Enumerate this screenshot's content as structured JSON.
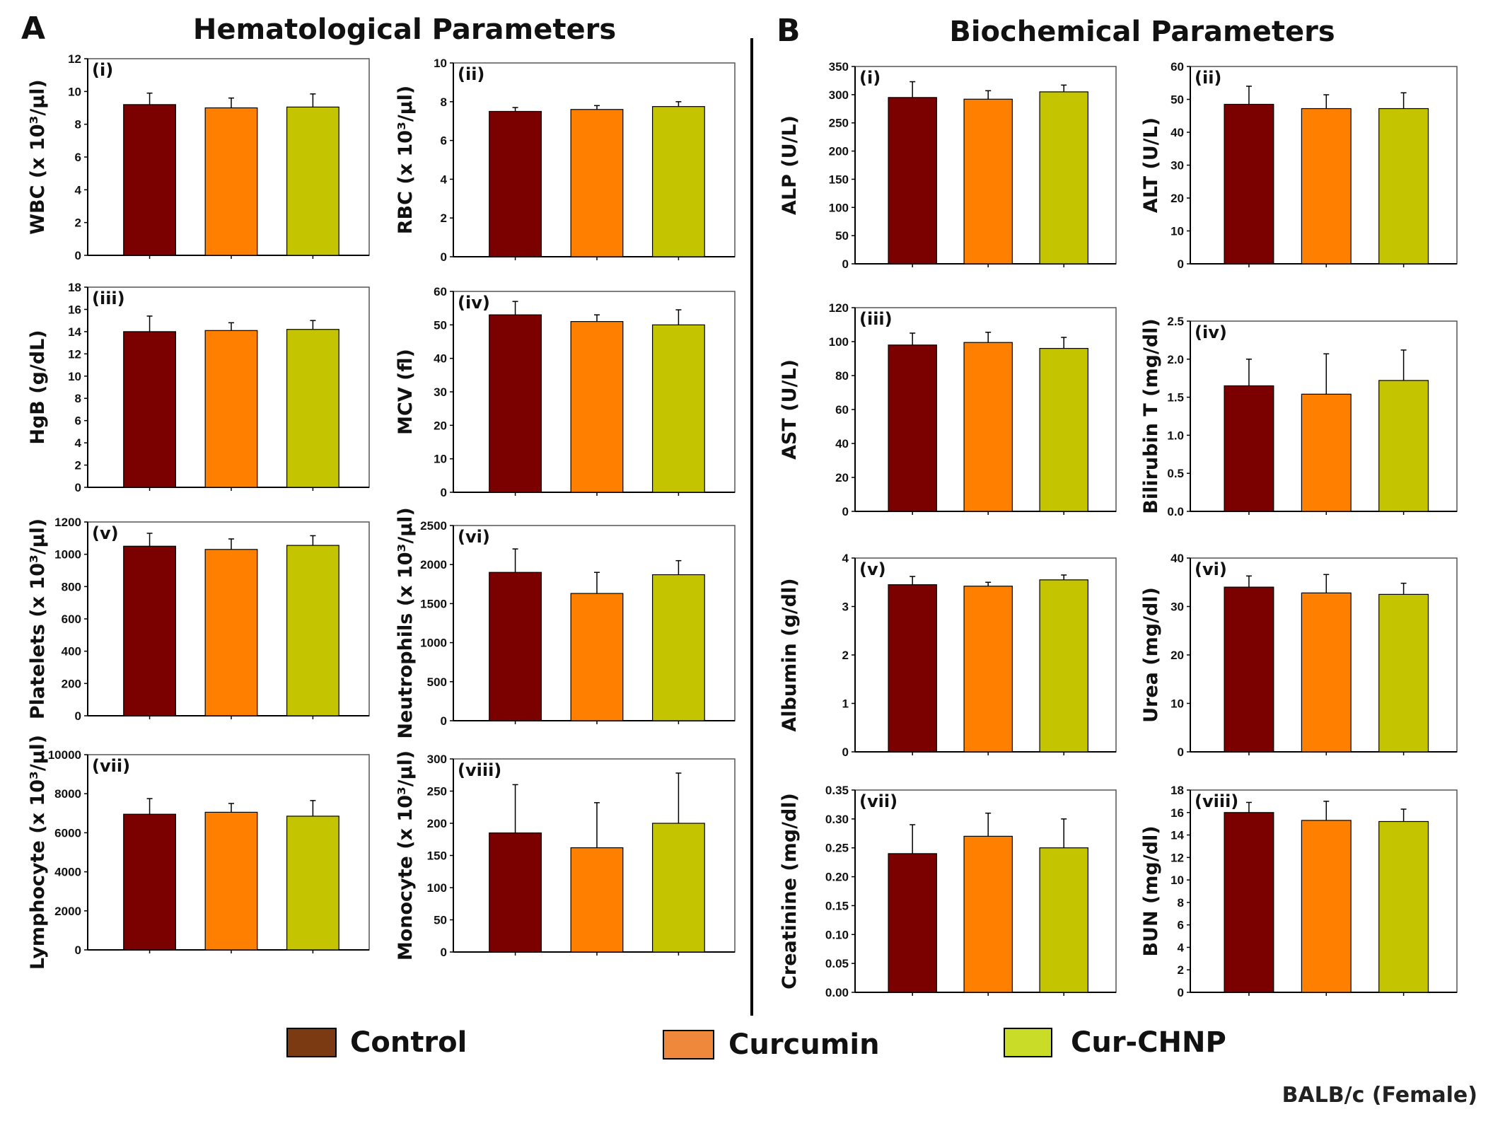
{
  "titles": {
    "A_letter": "A",
    "A_title": "Hematological Parameters",
    "B_letter": "B",
    "B_title": "Biochemical Parameters"
  },
  "legend": [
    {
      "label": "Control",
      "color": "#7b3a12"
    },
    {
      "label": "Curcumin",
      "color": "#f0883c"
    },
    {
      "label": "Cur-CHNP",
      "color": "#c8dc28"
    }
  ],
  "footer": "BALB/c (Female)",
  "bar_colors": [
    "#7b0000",
    "#ff8000",
    "#c4c400"
  ],
  "chart_data": [
    {
      "type": "bar",
      "panel": "(i)",
      "section": "A",
      "ylabel": "WBC (x 10³/µl)",
      "ylim": [
        0,
        12
      ],
      "ticks": [
        "0",
        "2",
        "4",
        "6",
        "8",
        "10",
        "12"
      ],
      "categories": [
        "Control",
        "Curcumin",
        "Cur-CHNP"
      ],
      "values": [
        9.2,
        9.0,
        9.05
      ],
      "errors": [
        0.7,
        0.6,
        0.8
      ]
    },
    {
      "type": "bar",
      "panel": "(ii)",
      "section": "A",
      "ylabel": "RBC (x 10³/µl)",
      "ylim": [
        0,
        10
      ],
      "ticks": [
        "0",
        "2",
        "4",
        "6",
        "8",
        "10"
      ],
      "categories": [
        "Control",
        "Curcumin",
        "Cur-CHNP"
      ],
      "values": [
        7.5,
        7.6,
        7.75
      ],
      "errors": [
        0.2,
        0.2,
        0.25
      ]
    },
    {
      "type": "bar",
      "panel": "(iii)",
      "section": "A",
      "ylabel": "HgB (g/dL)",
      "ylim": [
        0,
        18
      ],
      "ticks": [
        "0",
        "2",
        "4",
        "6",
        "8",
        "10",
        "12",
        "14",
        "16",
        "18"
      ],
      "categories": [
        "Control",
        "Curcumin",
        "Cur-CHNP"
      ],
      "values": [
        14.0,
        14.1,
        14.2
      ],
      "errors": [
        1.4,
        0.7,
        0.8
      ]
    },
    {
      "type": "bar",
      "panel": "(iv)",
      "section": "A",
      "ylabel": "MCV (fl)",
      "ylim": [
        0,
        60
      ],
      "ticks": [
        "0",
        "10",
        "20",
        "30",
        "40",
        "50",
        "60"
      ],
      "categories": [
        "Control",
        "Curcumin",
        "Cur-CHNP"
      ],
      "values": [
        53,
        51,
        50
      ],
      "errors": [
        4,
        2,
        4.5
      ]
    },
    {
      "type": "bar",
      "panel": "(v)",
      "section": "A",
      "ylabel": "Platelets (x 10³/µl)",
      "ylim": [
        0,
        1200
      ],
      "ticks": [
        "0",
        "200",
        "400",
        "600",
        "800",
        "1000",
        "1200"
      ],
      "categories": [
        "Control",
        "Curcumin",
        "Cur-CHNP"
      ],
      "values": [
        1050,
        1030,
        1055
      ],
      "errors": [
        80,
        65,
        60
      ]
    },
    {
      "type": "bar",
      "panel": "(vi)",
      "section": "A",
      "ylabel": "Neutrophils (x 10³/µl)",
      "ylim": [
        0,
        2500
      ],
      "ticks": [
        "0",
        "500",
        "1000",
        "1500",
        "2000",
        "2500"
      ],
      "categories": [
        "Control",
        "Curcumin",
        "Cur-CHNP"
      ],
      "values": [
        1900,
        1630,
        1870
      ],
      "errors": [
        300,
        270,
        180
      ]
    },
    {
      "type": "bar",
      "panel": "(vii)",
      "section": "A",
      "ylabel": "Lymphocyte (x 10³/µl)",
      "ylim": [
        0,
        10000
      ],
      "ticks": [
        "0",
        "2000",
        "4000",
        "6000",
        "8000",
        "10000"
      ],
      "categories": [
        "Control",
        "Curcumin",
        "Cur-CHNP"
      ],
      "values": [
        6950,
        7050,
        6850
      ],
      "errors": [
        800,
        450,
        800
      ]
    },
    {
      "type": "bar",
      "panel": "(viii)",
      "section": "A",
      "ylabel": "Monocyte (x 10³/µl)",
      "ylim": [
        0,
        300
      ],
      "ticks": [
        "0",
        "50",
        "100",
        "150",
        "200",
        "250",
        "300"
      ],
      "categories": [
        "Control",
        "Curcumin",
        "Cur-CHNP"
      ],
      "values": [
        185,
        162,
        200
      ],
      "errors": [
        75,
        70,
        78
      ]
    },
    {
      "type": "bar",
      "panel": "(i)",
      "section": "B",
      "ylabel": "ALP (U/L)",
      "ylim": [
        0,
        350
      ],
      "ticks": [
        "0",
        "50",
        "100",
        "150",
        "200",
        "250",
        "300",
        "350"
      ],
      "categories": [
        "Control",
        "Curcumin",
        "Cur-CHNP"
      ],
      "values": [
        295,
        292,
        305
      ],
      "errors": [
        28,
        15,
        12
      ]
    },
    {
      "type": "bar",
      "panel": "(ii)",
      "section": "B",
      "ylabel": "ALT (U/L)",
      "ylim": [
        0,
        60
      ],
      "ticks": [
        "0",
        "10",
        "20",
        "30",
        "40",
        "50",
        "60"
      ],
      "categories": [
        "Control",
        "Curcumin",
        "Cur-CHNP"
      ],
      "values": [
        48.5,
        47.2,
        47.2
      ],
      "errors": [
        5.5,
        4.2,
        4.8
      ]
    },
    {
      "type": "bar",
      "panel": "(iii)",
      "section": "B",
      "ylabel": "AST (U/L)",
      "ylim": [
        0,
        120
      ],
      "ticks": [
        "0",
        "20",
        "40",
        "60",
        "80",
        "100",
        "120"
      ],
      "categories": [
        "Control",
        "Curcumin",
        "Cur-CHNP"
      ],
      "values": [
        98,
        99.5,
        96
      ],
      "errors": [
        7,
        6,
        6.5
      ]
    },
    {
      "type": "bar",
      "panel": "(iv)",
      "section": "B",
      "ylabel": "Bilirubin T (mg/dl)",
      "ylim": [
        0,
        2.5
      ],
      "ticks": [
        "0.0",
        "0.5",
        "1.0",
        "1.5",
        "2.0",
        "2.5"
      ],
      "categories": [
        "Control",
        "Curcumin",
        "Cur-CHNP"
      ],
      "values": [
        1.65,
        1.54,
        1.72
      ],
      "errors": [
        0.35,
        0.53,
        0.4
      ]
    },
    {
      "type": "bar",
      "panel": "(v)",
      "section": "B",
      "ylabel": "Albumin (g/dl)",
      "ylim": [
        0,
        4
      ],
      "ticks": [
        "0",
        "1",
        "2",
        "3",
        "4"
      ],
      "categories": [
        "Control",
        "Curcumin",
        "Cur-CHNP"
      ],
      "values": [
        3.45,
        3.42,
        3.55
      ],
      "errors": [
        0.17,
        0.08,
        0.1
      ]
    },
    {
      "type": "bar",
      "panel": "(vi)",
      "section": "B",
      "ylabel": "Urea (mg/dl)",
      "ylim": [
        0,
        40
      ],
      "ticks": [
        "0",
        "10",
        "20",
        "30",
        "40"
      ],
      "categories": [
        "Control",
        "Curcumin",
        "Cur-CHNP"
      ],
      "values": [
        34,
        32.8,
        32.5
      ],
      "errors": [
        2.3,
        3.8,
        2.3
      ]
    },
    {
      "type": "bar",
      "panel": "(vii)",
      "section": "B",
      "ylabel": "Creatinine (mg/dl)",
      "ylim": [
        0,
        0.35
      ],
      "ticks": [
        "0.00",
        "0.05",
        "0.10",
        "0.15",
        "0.20",
        "0.25",
        "0.30",
        "0.35"
      ],
      "categories": [
        "Control",
        "Curcumin",
        "Cur-CHNP"
      ],
      "values": [
        0.24,
        0.27,
        0.25
      ],
      "errors": [
        0.05,
        0.04,
        0.05
      ]
    },
    {
      "type": "bar",
      "panel": "(viii)",
      "section": "B",
      "ylabel": "BUN (mg/dl)",
      "ylim": [
        0,
        18
      ],
      "ticks": [
        "0",
        "2",
        "4",
        "6",
        "8",
        "10",
        "12",
        "14",
        "16",
        "18"
      ],
      "categories": [
        "Control",
        "Curcumin",
        "Cur-CHNP"
      ],
      "values": [
        16,
        15.3,
        15.2
      ],
      "errors": [
        0.9,
        1.7,
        1.1
      ]
    }
  ]
}
